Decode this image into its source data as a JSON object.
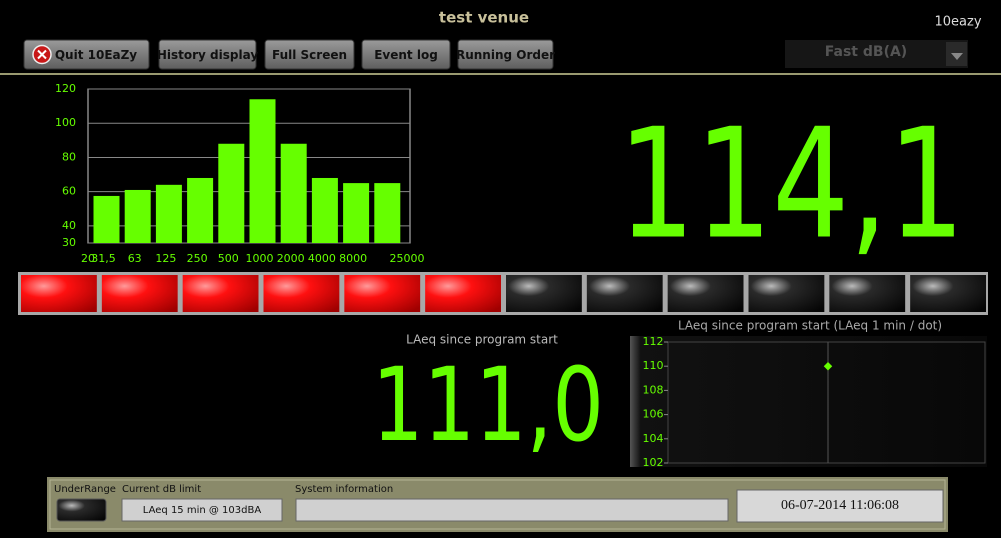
{
  "header": {
    "title": "test venue",
    "logo": "10eazy"
  },
  "toolbar": {
    "buttons": [
      "Quit 10EaZy",
      "History display",
      "Full Screen",
      "Event log",
      "Running Order"
    ],
    "mode": "Fast dB(A)"
  },
  "level": {
    "value": "114,1"
  },
  "spectrum": {
    "chart_data": {
      "type": "bar",
      "categories": [
        "31,5",
        "63",
        "125",
        "250",
        "500",
        "1000",
        "2000",
        "4000",
        "8000",
        "25000"
      ],
      "edge_label": "20",
      "values": [
        57.5,
        61,
        64,
        68,
        88,
        114,
        88,
        68,
        65,
        65
      ],
      "color": "#66ff00",
      "ylim": [
        30,
        120
      ],
      "yticks": [
        30,
        40,
        60,
        80,
        100,
        120
      ],
      "grid": true
    }
  },
  "meter": {
    "segments": 12,
    "lit": 6
  },
  "laeq": {
    "label": "LAeq since program start",
    "value": "111,0"
  },
  "history": {
    "chart_data": {
      "type": "scatter",
      "title": "LAeq since program start (LAeq 1 min / dot)",
      "values": [
        110
      ],
      "color": "#66ff00",
      "ylim": [
        102,
        112
      ],
      "yticks": [
        102,
        104,
        106,
        108,
        110,
        112
      ]
    }
  },
  "status": {
    "underrange_label": "UnderRange",
    "limit_label": "Current dB limit",
    "limit_value": "LAeq 15 min @ 103dBA",
    "system_label": "System information",
    "datetime": "06-07-2014 11:06:08"
  }
}
